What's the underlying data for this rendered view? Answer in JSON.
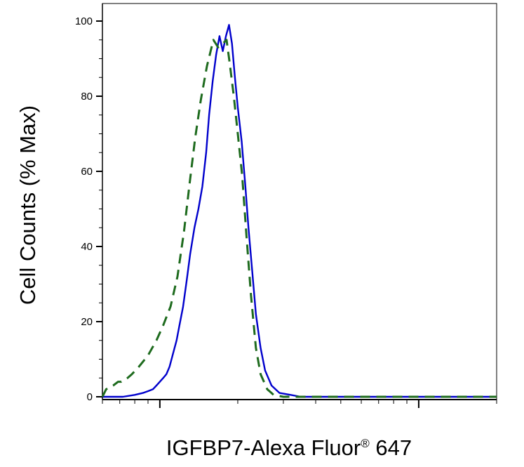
{
  "chart_data": {
    "type": "line",
    "title": "",
    "xlabel": "IGFBP7-Alexa Fluor",
    "xlabel_mark": "®",
    "xlabel_suffix": " 647",
    "ylabel": "Cell Counts (% Max)",
    "x_scale": "log",
    "xlim": [
      0.6,
      20
    ],
    "ylim": [
      0,
      100
    ],
    "y_ticks": [
      0,
      20,
      40,
      60,
      80,
      100
    ],
    "y_tick_labels": [
      "0",
      "20",
      "40",
      "60",
      "80",
      "100"
    ],
    "grid": false,
    "legend": "none",
    "series": [
      {
        "style": "solid",
        "color": "#0000cc",
        "x": [
          0.6,
          0.72,
          0.8,
          0.86,
          0.9,
          0.94,
          0.97,
          1.0,
          1.03,
          1.06,
          1.09,
          1.12,
          1.16,
          1.19,
          1.23,
          1.27,
          1.31,
          1.36,
          1.41,
          1.46,
          1.51,
          1.55,
          1.6,
          1.65,
          1.7,
          1.75,
          1.8,
          1.85,
          1.9,
          1.95,
          2.0,
          2.07,
          2.14,
          2.2,
          2.27,
          2.35,
          2.45,
          2.55,
          2.7,
          2.9,
          3.2,
          3.5,
          4.0,
          20
        ],
        "y": [
          0,
          0,
          0.5,
          1,
          1.5,
          2,
          3,
          4,
          5,
          6,
          8,
          11,
          15,
          19,
          24,
          31,
          38,
          45,
          50,
          56,
          65,
          75,
          84,
          91,
          96,
          92,
          96,
          99,
          94,
          85,
          77,
          68,
          56,
          45,
          34,
          22,
          13,
          7,
          3,
          1,
          0.5,
          0,
          0,
          0
        ]
      },
      {
        "style": "dashed",
        "color": "#1e6b1e",
        "x": [
          0.6,
          0.62,
          0.66,
          0.69,
          0.71,
          0.75,
          0.78,
          0.83,
          0.9,
          0.97,
          1.03,
          1.1,
          1.17,
          1.24,
          1.31,
          1.37,
          1.44,
          1.52,
          1.61,
          1.68,
          1.75,
          1.81,
          1.86,
          1.93,
          2.0,
          2.08,
          2.16,
          2.25,
          2.35,
          2.45,
          2.6,
          2.75,
          3.0,
          3.2,
          20
        ],
        "y": [
          0,
          2,
          3,
          4,
          4,
          5,
          6,
          8,
          11,
          15,
          19,
          24,
          32,
          44,
          58,
          69,
          79,
          88,
          95,
          93,
          94,
          95,
          89,
          80,
          70,
          59,
          43,
          27,
          13,
          6,
          2,
          0.5,
          0,
          0,
          0
        ]
      }
    ]
  }
}
